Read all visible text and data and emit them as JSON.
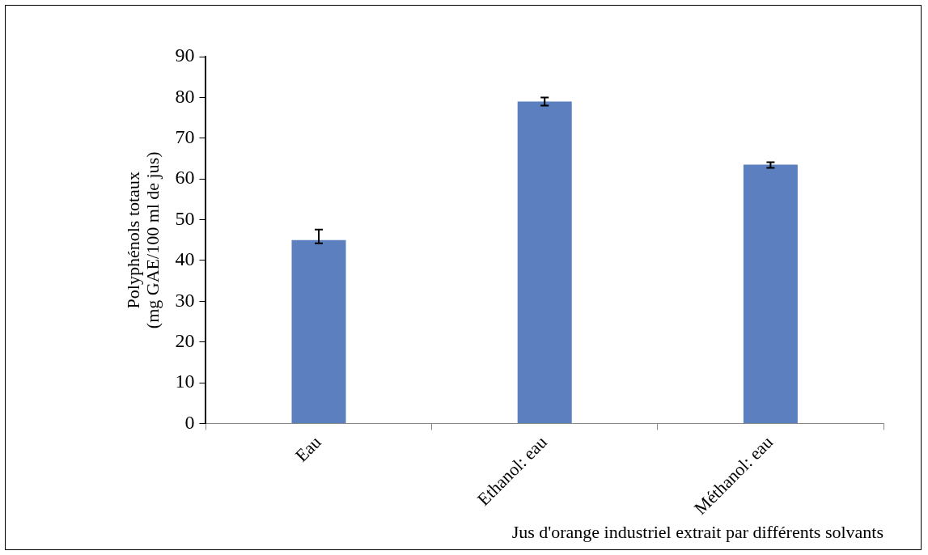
{
  "chart_data": {
    "type": "bar",
    "xlabel": "Jus d'orange industriel extrait par différents solvants",
    "ylabel": "Polyphénols totaux\n(mg GAE/100 ml de jus)",
    "categories": [
      "Eau",
      "Ethanol: eau",
      "Méthanol: eau"
    ],
    "values": [
      45,
      79,
      63.5
    ],
    "errors": [
      [
        44.2,
        47.6
      ],
      [
        78,
        80
      ],
      [
        62.7,
        64.1
      ]
    ],
    "color": "#5b7fbf",
    "ylim": [
      0,
      90
    ],
    "yticks": [
      0,
      10,
      20,
      30,
      40,
      50,
      60,
      70,
      80,
      90
    ],
    "grid": false,
    "legend": false
  }
}
